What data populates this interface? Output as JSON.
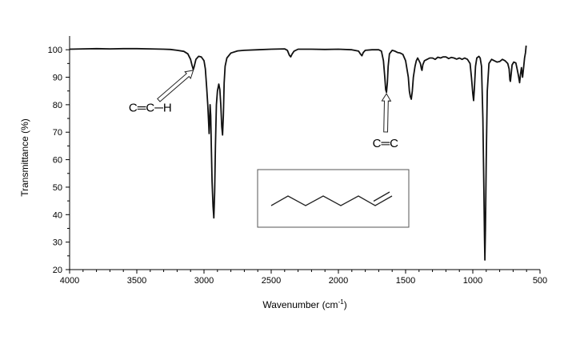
{
  "chart_data": {
    "type": "line",
    "xlabel": "Wavenumber (cm",
    "xlabel_sup": "-1",
    "xlabel_close": ")",
    "ylabel": "Transmittance (%)",
    "xlim": [
      4000,
      500
    ],
    "ylim": [
      20,
      105
    ],
    "xticks": [
      4000,
      3500,
      3000,
      2500,
      2000,
      1500,
      1000,
      500
    ],
    "yticks": [
      20,
      30,
      40,
      50,
      60,
      70,
      80,
      90,
      100
    ],
    "grid": false,
    "annotations": [
      {
        "text": "C═C─H",
        "x": 3400,
        "y": 79,
        "arrow_to": [
          3080,
          92.5
        ]
      },
      {
        "text": "C═C",
        "x": 1650,
        "y": 66,
        "arrow_to": [
          1642,
          84
        ]
      }
    ],
    "inset": {
      "type": "skeletal-structure",
      "label": "1-octene"
    },
    "series": [
      {
        "points": [
          [
            4000,
            100.2
          ],
          [
            3900,
            100.3
          ],
          [
            3800,
            100.4
          ],
          [
            3700,
            100.3
          ],
          [
            3600,
            100.4
          ],
          [
            3500,
            100.4
          ],
          [
            3400,
            100.3
          ],
          [
            3300,
            100.2
          ],
          [
            3250,
            100.1
          ],
          [
            3200,
            99.8
          ],
          [
            3150,
            99.4
          ],
          [
            3120,
            98.5
          ],
          [
            3100,
            96.5
          ],
          [
            3090,
            94.5
          ],
          [
            3080,
            92.8
          ],
          [
            3075,
            93.5
          ],
          [
            3060,
            96.5
          ],
          [
            3040,
            97.6
          ],
          [
            3020,
            97.4
          ],
          [
            3000,
            96.0
          ],
          [
            2990,
            93.0
          ],
          [
            2980,
            86.0
          ],
          [
            2972,
            80.0
          ],
          [
            2966,
            74.0
          ],
          [
            2962,
            69.5
          ],
          [
            2958,
            75.0
          ],
          [
            2955,
            80.0
          ],
          [
            2950,
            76.0
          ],
          [
            2945,
            64.0
          ],
          [
            2940,
            52.0
          ],
          [
            2933,
            43.0
          ],
          [
            2927,
            38.8
          ],
          [
            2921,
            48.0
          ],
          [
            2915,
            65.0
          ],
          [
            2908,
            80.0
          ],
          [
            2900,
            85.0
          ],
          [
            2890,
            87.5
          ],
          [
            2882,
            85.5
          ],
          [
            2875,
            80.0
          ],
          [
            2868,
            72.0
          ],
          [
            2862,
            69.0
          ],
          [
            2856,
            76.0
          ],
          [
            2850,
            88.0
          ],
          [
            2843,
            94.0
          ],
          [
            2830,
            97.0
          ],
          [
            2800,
            98.8
          ],
          [
            2750,
            99.6
          ],
          [
            2700,
            99.8
          ],
          [
            2600,
            100.0
          ],
          [
            2500,
            100.2
          ],
          [
            2400,
            100.3
          ],
          [
            2380,
            99.8
          ],
          [
            2365,
            98.0
          ],
          [
            2355,
            97.4
          ],
          [
            2345,
            98.4
          ],
          [
            2330,
            99.5
          ],
          [
            2300,
            100.2
          ],
          [
            2200,
            100.2
          ],
          [
            2100,
            100.1
          ],
          [
            2000,
            100.2
          ],
          [
            1900,
            100.0
          ],
          [
            1850,
            99.5
          ],
          [
            1835,
            98.4
          ],
          [
            1825,
            97.8
          ],
          [
            1815,
            99.0
          ],
          [
            1800,
            99.8
          ],
          [
            1750,
            100.0
          ],
          [
            1700,
            100.0
          ],
          [
            1680,
            99.5
          ],
          [
            1665,
            96.0
          ],
          [
            1655,
            90.0
          ],
          [
            1648,
            85.5
          ],
          [
            1642,
            84.5
          ],
          [
            1636,
            88.0
          ],
          [
            1630,
            94.0
          ],
          [
            1620,
            98.5
          ],
          [
            1600,
            99.8
          ],
          [
            1580,
            99.5
          ],
          [
            1560,
            99.0
          ],
          [
            1540,
            98.8
          ],
          [
            1520,
            98.3
          ],
          [
            1500,
            96.0
          ],
          [
            1490,
            93.0
          ],
          [
            1480,
            90.0
          ],
          [
            1472,
            85.0
          ],
          [
            1465,
            83.0
          ],
          [
            1458,
            82.0
          ],
          [
            1450,
            85.0
          ],
          [
            1442,
            90.0
          ],
          [
            1430,
            94.0
          ],
          [
            1420,
            96.0
          ],
          [
            1410,
            97.0
          ],
          [
            1400,
            96.0
          ],
          [
            1390,
            95.0
          ],
          [
            1382,
            93.0
          ],
          [
            1378,
            92.5
          ],
          [
            1372,
            94.5
          ],
          [
            1360,
            96.0
          ],
          [
            1340,
            96.5
          ],
          [
            1320,
            97.0
          ],
          [
            1300,
            97.0
          ],
          [
            1280,
            96.5
          ],
          [
            1260,
            97.3
          ],
          [
            1240,
            97.0
          ],
          [
            1220,
            97.4
          ],
          [
            1200,
            97.4
          ],
          [
            1180,
            96.8
          ],
          [
            1160,
            97.2
          ],
          [
            1140,
            97.0
          ],
          [
            1120,
            96.6
          ],
          [
            1100,
            97.0
          ],
          [
            1080,
            96.5
          ],
          [
            1060,
            97.0
          ],
          [
            1040,
            96.5
          ],
          [
            1020,
            95.0
          ],
          [
            1010,
            90.0
          ],
          [
            1000,
            84.0
          ],
          [
            994,
            81.5
          ],
          [
            988,
            86.0
          ],
          [
            980,
            94.0
          ],
          [
            970,
            97.0
          ],
          [
            955,
            97.6
          ],
          [
            945,
            97.0
          ],
          [
            935,
            94.0
          ],
          [
            925,
            75.0
          ],
          [
            918,
            50.0
          ],
          [
            913,
            32.0
          ],
          [
            910,
            23.5
          ],
          [
            906,
            35.0
          ],
          [
            900,
            60.0
          ],
          [
            892,
            85.0
          ],
          [
            880,
            95.0
          ],
          [
            860,
            96.5
          ],
          [
            840,
            96.0
          ],
          [
            820,
            95.5
          ],
          [
            800,
            95.7
          ],
          [
            780,
            96.5
          ],
          [
            760,
            96.0
          ],
          [
            740,
            95.0
          ],
          [
            730,
            93.0
          ],
          [
            724,
            89.0
          ],
          [
            720,
            88.5
          ],
          [
            715,
            91.0
          ],
          [
            708,
            94.5
          ],
          [
            695,
            95.5
          ],
          [
            680,
            95.2
          ],
          [
            670,
            93.0
          ],
          [
            660,
            90.5
          ],
          [
            652,
            88.0
          ],
          [
            645,
            91.0
          ],
          [
            638,
            93.5
          ],
          [
            630,
            90.0
          ],
          [
            622,
            93.5
          ],
          [
            615,
            97.0
          ],
          [
            608,
            99.0
          ],
          [
            603,
            101.5
          ]
        ]
      }
    ]
  }
}
